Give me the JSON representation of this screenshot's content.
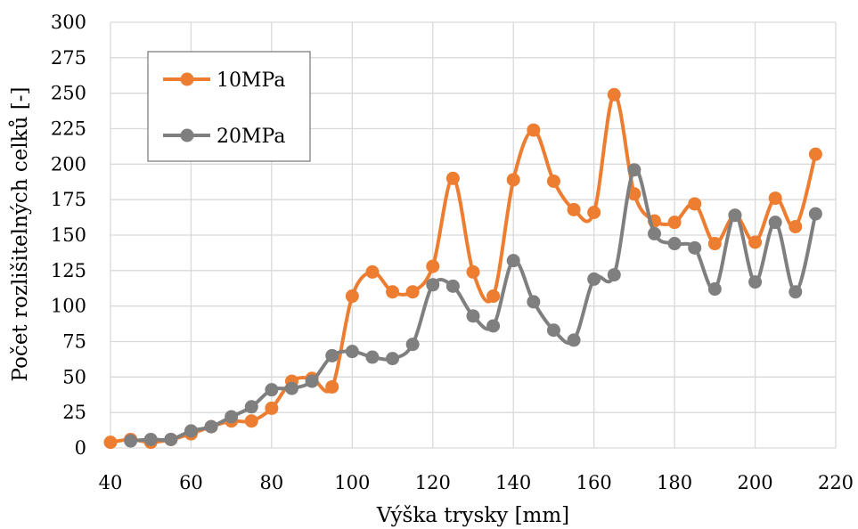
{
  "chart_data": {
    "type": "line",
    "smooth": true,
    "xlabel": "Výška trysky [mm]",
    "ylabel": "Počet rozlišitelných celků [-]",
    "xlim": [
      40,
      220
    ],
    "ylim": [
      0,
      300
    ],
    "xticks": [
      "40",
      "60",
      "80",
      "100",
      "120",
      "140",
      "160",
      "180",
      "200",
      "220"
    ],
    "yticks": [
      "0",
      "25",
      "50",
      "75",
      "100",
      "125",
      "150",
      "175",
      "200",
      "225",
      "250",
      "275",
      "300"
    ],
    "grid": true,
    "legend_position": "top-left",
    "x": [
      40,
      45,
      50,
      55,
      60,
      65,
      70,
      75,
      80,
      85,
      90,
      95,
      100,
      105,
      110,
      115,
      120,
      125,
      130,
      135,
      140,
      145,
      150,
      155,
      160,
      165,
      170,
      175,
      180,
      185,
      190,
      195,
      200,
      205,
      210,
      215
    ],
    "series": [
      {
        "name": "10MPa",
        "color": "#ED7D31",
        "values": [
          4,
          6,
          4,
          6,
          10,
          15,
          19,
          19,
          28,
          47,
          49,
          43,
          107,
          124,
          110,
          110,
          128,
          190,
          124,
          107,
          189,
          224,
          188,
          168,
          166,
          249,
          179,
          160,
          159,
          172,
          144,
          164,
          145,
          176,
          156,
          207
        ]
      },
      {
        "name": "20MPa",
        "color": "#7F7F7F",
        "values": [
          null,
          5,
          6,
          6,
          12,
          15,
          22,
          29,
          41,
          42,
          47,
          65,
          68,
          64,
          63,
          73,
          115,
          114,
          93,
          86,
          132,
          103,
          83,
          76,
          119,
          122,
          196,
          151,
          144,
          141,
          112,
          164,
          117,
          159,
          110,
          165
        ]
      }
    ]
  }
}
